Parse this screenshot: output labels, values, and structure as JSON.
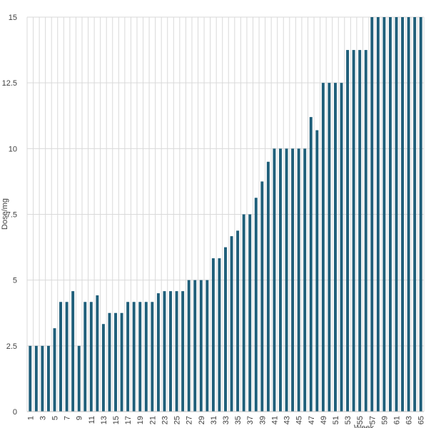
{
  "chart_data": {
    "type": "bar",
    "xlabel": "Week",
    "ylabel": "Dose/mg",
    "ylim": [
      0,
      15
    ],
    "yticks": [
      0,
      2.5,
      5,
      7.5,
      10,
      12.5,
      15
    ],
    "ytick_labels": [
      "0",
      "2.5",
      "5",
      "7.5",
      "10",
      "12.5",
      "15"
    ],
    "categories": [
      1,
      2,
      3,
      4,
      5,
      6,
      7,
      8,
      9,
      10,
      11,
      12,
      13,
      14,
      15,
      16,
      17,
      18,
      19,
      20,
      21,
      22,
      23,
      24,
      25,
      26,
      27,
      28,
      29,
      30,
      31,
      32,
      33,
      34,
      35,
      36,
      37,
      38,
      39,
      40,
      41,
      42,
      43,
      44,
      45,
      46,
      47,
      48,
      49,
      50,
      51,
      52,
      53,
      54,
      55,
      56,
      57,
      58,
      59,
      60,
      61,
      62,
      63,
      64,
      65
    ],
    "xtick_labels": [
      "1",
      "3",
      "5",
      "7",
      "9",
      "11",
      "13",
      "15",
      "17",
      "19",
      "21",
      "23",
      "25",
      "27",
      "29",
      "31",
      "33",
      "35",
      "37",
      "39",
      "41",
      "43",
      "45",
      "47",
      "49",
      "51",
      "53",
      "55",
      "57",
      "59",
      "61",
      "63",
      "65"
    ],
    "values": [
      2.5,
      2.5,
      2.5,
      2.5,
      3.17,
      4.17,
      4.17,
      4.58,
      2.5,
      4.17,
      4.17,
      4.42,
      3.33,
      3.75,
      3.75,
      3.75,
      4.17,
      4.17,
      4.17,
      4.17,
      4.17,
      4.5,
      4.58,
      4.58,
      4.58,
      4.58,
      5.0,
      5.0,
      5.0,
      5.0,
      5.83,
      5.83,
      6.25,
      6.67,
      6.88,
      7.5,
      7.5,
      8.13,
      8.75,
      9.5,
      10.0,
      10.0,
      10.0,
      10.0,
      10.0,
      10.0,
      11.2,
      10.7,
      12.5,
      12.5,
      12.5,
      12.5,
      13.75,
      13.75,
      13.75,
      13.75,
      15.0,
      15.0,
      15.0,
      15.0,
      15.0,
      15.0,
      15.0,
      15.0,
      15.0
    ],
    "grid": true,
    "colors": {
      "bar": "#1f5f7a",
      "grid": "#d9d9d9",
      "axis": "#bfbfbf"
    }
  }
}
